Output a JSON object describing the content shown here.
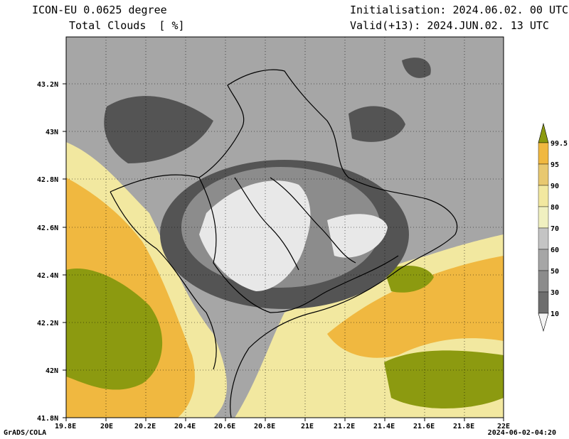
{
  "header": {
    "model": "ICON-EU 0.0625 degree",
    "field": "Total Clouds  [ %]",
    "init": "Initialisation: 2024.06.02. 00 UTC",
    "valid": "Valid(+13): 2024.JUN.02. 13 UTC"
  },
  "axes": {
    "lon_ticks": [
      "19.8E",
      "20E",
      "20.2E",
      "20.4E",
      "20.6E",
      "20.8E",
      "21E",
      "21.2E",
      "21.4E",
      "21.6E",
      "21.8E",
      "22E"
    ],
    "lat_ticks": [
      "43.2N",
      "43N",
      "42.8N",
      "42.6N",
      "42.4N",
      "42.2N",
      "42N",
      "41.8N"
    ]
  },
  "colorbar": {
    "levels": [
      "99.5",
      "95",
      "90",
      "80",
      "70",
      "60",
      "50",
      "30",
      "10"
    ],
    "colors": [
      "#b3b3b3",
      "#e8e8e8",
      "#d7d7d7",
      "#c4c4c4",
      "#a6a6a6",
      "#8c8c8c",
      "#6e6e6e",
      "#545454",
      "#f0f0c0",
      "#f2e8a0",
      "#e8c870",
      "#f0b840",
      "#8c9a10"
    ]
  },
  "footer": {
    "left": "GrADS/COLA",
    "right": "2024-06-02-04:20"
  }
}
